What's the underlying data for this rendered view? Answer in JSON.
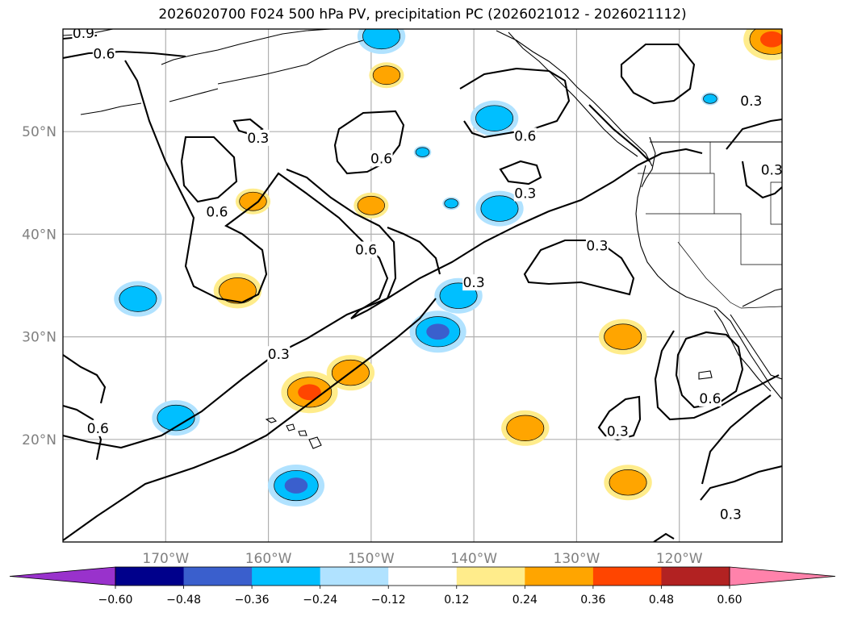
{
  "chart_data": {
    "type": "heatmap",
    "title": "2026020700 F024 500 hPa PV, precipitation PC (2026021012 - 2026021112)",
    "projection": "lat-lon",
    "lon_range": [
      -180,
      -110
    ],
    "lat_range": [
      10,
      60
    ],
    "x_ticks": [
      -170,
      -160,
      -150,
      -140,
      -130,
      -120
    ],
    "x_tick_labels": [
      "170°W",
      "160°W",
      "150°W",
      "140°W",
      "130°W",
      "120°W"
    ],
    "y_ticks": [
      20,
      30,
      40,
      50
    ],
    "y_tick_labels": [
      "20°N",
      "30°N",
      "40°N",
      "50°N"
    ],
    "grid": true,
    "colorbar": {
      "orientation": "horizontal",
      "extend": "both",
      "levels": [
        -0.6,
        -0.48,
        -0.36,
        -0.24,
        -0.12,
        0.12,
        0.24,
        0.36,
        0.48,
        0.6
      ],
      "tick_labels": [
        "−0.60",
        "−0.48",
        "−0.36",
        "−0.24",
        "−0.12",
        "0.12",
        "0.24",
        "0.36",
        "0.48",
        "0.60"
      ],
      "colors": [
        "#9932cc",
        "#00008b",
        "#3a5fcd",
        "#00bfff",
        "#b0e2ff",
        "#ffffff",
        "#ffec8b",
        "#ffa500",
        "#ff4500",
        "#b22222",
        "#ff82ab"
      ]
    },
    "pv_contour_levels": [
      0.3,
      0.6,
      0.9
    ],
    "contour_labels": [
      {
        "text": "0.9",
        "lon": -178,
        "lat": 59.6
      },
      {
        "text": "0.6",
        "lon": -176,
        "lat": 57.6
      },
      {
        "text": "0.3",
        "lon": -161,
        "lat": 49.4
      },
      {
        "text": "0.6",
        "lon": -165,
        "lat": 42.2
      },
      {
        "text": "0.6",
        "lon": -149,
        "lat": 47.4
      },
      {
        "text": "0.6",
        "lon": -135,
        "lat": 49.6
      },
      {
        "text": "0.3",
        "lon": -135,
        "lat": 44.0
      },
      {
        "text": "0.6",
        "lon": -150.5,
        "lat": 38.5
      },
      {
        "text": "0.3",
        "lon": -140,
        "lat": 35.3
      },
      {
        "text": "0.3",
        "lon": -128,
        "lat": 38.9
      },
      {
        "text": "0.3",
        "lon": -113,
        "lat": 53.0
      },
      {
        "text": "0.3",
        "lon": -111,
        "lat": 46.3
      },
      {
        "text": "0.3",
        "lon": -159,
        "lat": 28.3
      },
      {
        "text": "0.6",
        "lon": -176.6,
        "lat": 21.1
      },
      {
        "text": "0.3",
        "lon": -126,
        "lat": 20.8
      },
      {
        "text": "0.6",
        "lon": -117,
        "lat": 24.0
      },
      {
        "text": "0.3",
        "lon": -115,
        "lat": 12.7
      }
    ],
    "precip_pc_areas": [
      {
        "lon": -163,
        "lat": 34.5,
        "value": 0.3
      },
      {
        "lon": -152,
        "lat": 26.5,
        "value": 0.3
      },
      {
        "lon": -156,
        "lat": 24.6,
        "value": 0.4
      },
      {
        "lon": -161.5,
        "lat": 43.2,
        "value": 0.25
      },
      {
        "lon": -148.5,
        "lat": 55.5,
        "value": 0.25
      },
      {
        "lon": -150,
        "lat": 42.8,
        "value": 0.25
      },
      {
        "lon": -125.5,
        "lat": 30.0,
        "value": 0.3
      },
      {
        "lon": -135,
        "lat": 21.1,
        "value": 0.3
      },
      {
        "lon": -125,
        "lat": 15.8,
        "value": 0.3
      },
      {
        "lon": -111,
        "lat": 59.0,
        "value": 0.4
      },
      {
        "lon": -141.5,
        "lat": 34.0,
        "value": -0.35
      },
      {
        "lon": -143.5,
        "lat": 30.5,
        "value": -0.45
      },
      {
        "lon": -157.3,
        "lat": 15.5,
        "value": -0.45
      },
      {
        "lon": -169,
        "lat": 22.1,
        "value": -0.35
      },
      {
        "lon": -172.7,
        "lat": 33.7,
        "value": -0.3
      },
      {
        "lon": -138,
        "lat": 51.3,
        "value": -0.3
      },
      {
        "lon": -137.5,
        "lat": 42.5,
        "value": -0.3
      },
      {
        "lon": -149,
        "lat": 59.3,
        "value": -0.3
      },
      {
        "lon": -117,
        "lat": 53.2,
        "value": -0.15
      },
      {
        "lon": -145,
        "lat": 48.0,
        "value": -0.15
      },
      {
        "lon": -142.2,
        "lat": 43.0,
        "value": -0.15
      }
    ]
  }
}
